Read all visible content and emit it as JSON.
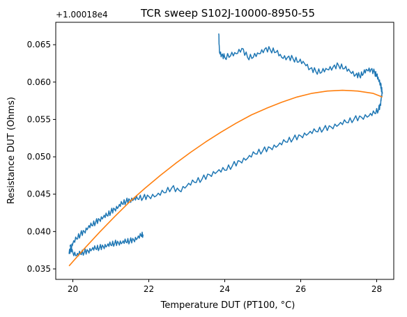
{
  "chart_data": {
    "type": "line",
    "title": "TCR sweep S102J-10000-8950-55",
    "xlabel": "Temperature DUT (PT100, °C)",
    "ylabel": "Resistance DUT (Ohms)",
    "offset_label": "+1.00018e4",
    "xlim": [
      19.55,
      28.45
    ],
    "ylim": [
      0.0336,
      0.068
    ],
    "x_ticks": [
      20,
      22,
      24,
      26,
      28
    ],
    "y_ticks": [
      0.035,
      0.04,
      0.045,
      0.05,
      0.055,
      0.06,
      0.065
    ],
    "x_tick_labels": [
      "20",
      "22",
      "24",
      "26",
      "28"
    ],
    "y_tick_labels": [
      "0.035",
      "0.040",
      "0.045",
      "0.050",
      "0.055",
      "0.060",
      "0.065"
    ],
    "grid": false,
    "series": [
      {
        "color": "#1f77b4",
        "style": "noisy-line",
        "x": [
          19.9,
          19.95,
          20.0,
          20.1,
          20.2,
          20.3,
          20.4,
          20.5,
          20.6,
          20.7,
          20.8,
          20.9,
          21.0,
          21.1,
          21.2,
          21.3,
          21.4,
          21.5,
          21.6,
          21.7,
          21.85,
          22.0,
          22.2,
          22.4,
          22.6,
          22.8,
          23.0,
          23.2,
          23.4,
          23.6,
          23.8,
          24.0,
          24.2,
          24.4,
          24.6,
          24.8,
          25.0,
          25.2,
          25.4,
          25.6,
          25.8,
          26.0,
          26.2,
          26.4,
          26.6,
          26.8,
          27.0,
          27.2,
          27.4,
          27.6,
          27.8,
          27.95,
          28.05,
          28.1,
          28.12,
          28.15,
          28.12,
          28.1,
          28.05,
          28.0,
          27.95,
          27.85,
          27.75,
          27.65,
          27.55,
          27.45,
          27.3,
          27.15,
          27.0,
          26.85,
          26.7,
          26.55,
          26.4,
          26.25,
          26.1,
          25.95,
          25.8,
          25.65,
          25.5,
          25.35,
          25.2,
          25.05,
          24.9,
          24.75,
          24.6,
          24.45,
          24.3,
          24.15,
          24.0,
          23.92,
          23.86,
          23.84
        ],
        "y": [
          0.037,
          0.0378,
          0.0384,
          0.039,
          0.0396,
          0.04,
          0.0405,
          0.0408,
          0.0412,
          0.0416,
          0.0419,
          0.0421,
          0.0426,
          0.043,
          0.0433,
          0.0437,
          0.044,
          0.0442,
          0.0443,
          0.0444,
          0.0445,
          0.0447,
          0.0448,
          0.0452,
          0.0458,
          0.0455,
          0.0461,
          0.0466,
          0.047,
          0.0476,
          0.048,
          0.0482,
          0.0488,
          0.0494,
          0.0498,
          0.0504,
          0.0508,
          0.0512,
          0.0515,
          0.052,
          0.0524,
          0.0528,
          0.0531,
          0.0534,
          0.0537,
          0.054,
          0.0543,
          0.0546,
          0.055,
          0.0553,
          0.0555,
          0.0558,
          0.0563,
          0.057,
          0.0578,
          0.0585,
          0.0592,
          0.0598,
          0.0603,
          0.0608,
          0.0612,
          0.0617,
          0.0616,
          0.0611,
          0.0608,
          0.061,
          0.0614,
          0.0618,
          0.0622,
          0.062,
          0.0617,
          0.0613,
          0.0614,
          0.0618,
          0.0625,
          0.0627,
          0.0631,
          0.0633,
          0.0633,
          0.064,
          0.0643,
          0.0644,
          0.0638,
          0.0633,
          0.0633,
          0.0645,
          0.0638,
          0.0635,
          0.0633,
          0.0636,
          0.064,
          0.0665
        ]
      },
      {
        "color": "#1f77b4",
        "style": "noisy-line",
        "x": [
          19.92,
          20.0,
          20.1,
          20.2,
          20.3,
          20.4,
          20.5,
          20.6,
          20.7,
          20.8,
          20.9,
          21.0,
          21.1,
          21.2,
          21.3,
          21.4,
          21.5,
          21.6,
          21.7,
          21.8,
          21.85
        ],
        "y": [
          0.038,
          0.0372,
          0.0368,
          0.037,
          0.0372,
          0.0374,
          0.0376,
          0.0377,
          0.0378,
          0.038,
          0.0381,
          0.0382,
          0.0384,
          0.0385,
          0.0385,
          0.0386,
          0.0387,
          0.0389,
          0.0391,
          0.0394,
          0.0396
        ]
      },
      {
        "color": "#ff7f0e",
        "style": "smooth-line",
        "x": [
          19.9,
          20.3,
          20.7,
          21.1,
          21.5,
          21.9,
          22.3,
          22.7,
          23.1,
          23.5,
          23.9,
          24.3,
          24.7,
          25.1,
          25.5,
          25.9,
          26.3,
          26.7,
          27.1,
          27.5,
          27.9,
          28.15
        ],
        "y": [
          0.0354,
          0.0377,
          0.0399,
          0.042,
          0.044,
          0.0458,
          0.0475,
          0.0491,
          0.0506,
          0.052,
          0.0533,
          0.0545,
          0.0556,
          0.0565,
          0.0573,
          0.058,
          0.0585,
          0.0588,
          0.0589,
          0.0588,
          0.0585,
          0.058
        ]
      }
    ]
  }
}
